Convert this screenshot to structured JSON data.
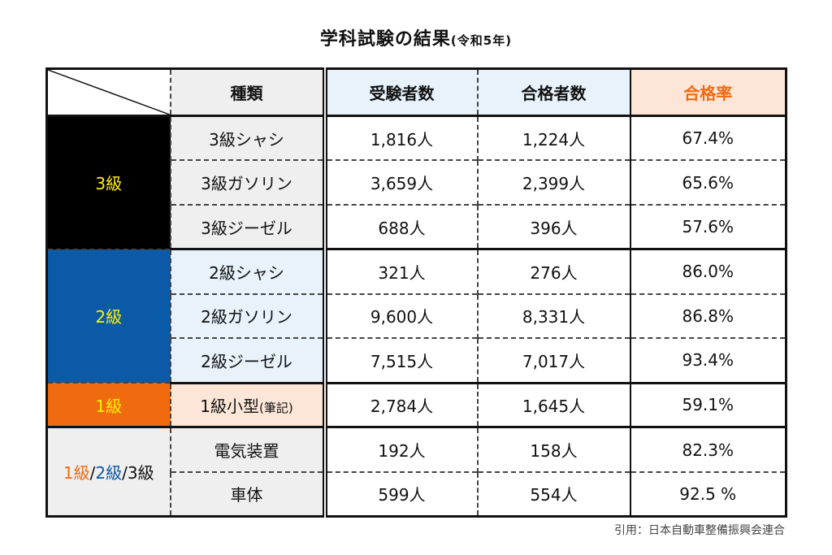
{
  "title": {
    "main": "学科試験の結果",
    "sub": "(令和5年)"
  },
  "headers": {
    "type": "種類",
    "examinees": "受験者数",
    "passers": "合格者数",
    "rate": "合格率"
  },
  "groups": [
    {
      "label": "3級"
    },
    {
      "label": "2級"
    },
    {
      "label": "1級"
    },
    {
      "label_parts": [
        "1級",
        "/",
        "2級",
        "/",
        "3級"
      ]
    }
  ],
  "rows": [
    {
      "type": "3級シャシ",
      "examinees": "1,816人",
      "passers": "1,224人",
      "rate": "67.4%"
    },
    {
      "type": "3級ガソリン",
      "examinees": "3,659人",
      "passers": "2,399人",
      "rate": "65.6%"
    },
    {
      "type": "3級ジーゼル",
      "examinees": "688人",
      "passers": "396人",
      "rate": "57.6%"
    },
    {
      "type": "2級シャシ",
      "examinees": "321人",
      "passers": "276人",
      "rate": "86.0%"
    },
    {
      "type": "2級ガソリン",
      "examinees": "9,600人",
      "passers": "8,331人",
      "rate": "86.8%"
    },
    {
      "type": "2級ジーゼル",
      "examinees": "7,515人",
      "passers": "7,017人",
      "rate": "93.4%"
    },
    {
      "type": "1級小型",
      "type_note": "(筆記)",
      "examinees": "2,784人",
      "passers": "1,645人",
      "rate": "59.1%"
    },
    {
      "type": "電気装置",
      "examinees": "192人",
      "passers": "158人",
      "rate": "82.3%"
    },
    {
      "type": "車体",
      "examinees": "599人",
      "passers": "554人",
      "rate": "92.5 %"
    }
  ],
  "source": "引用：日本自動車整備振興会連合",
  "colors": {
    "grade3_bg": "#000000",
    "grade2_bg": "#0a5aa8",
    "grade1_bg": "#f06b0f",
    "grade_label": "#ffee00",
    "rate_header_text": "#f26a10",
    "light_blue": "#e7f2fb",
    "peach": "#fde6d8",
    "gray": "#efefef"
  }
}
